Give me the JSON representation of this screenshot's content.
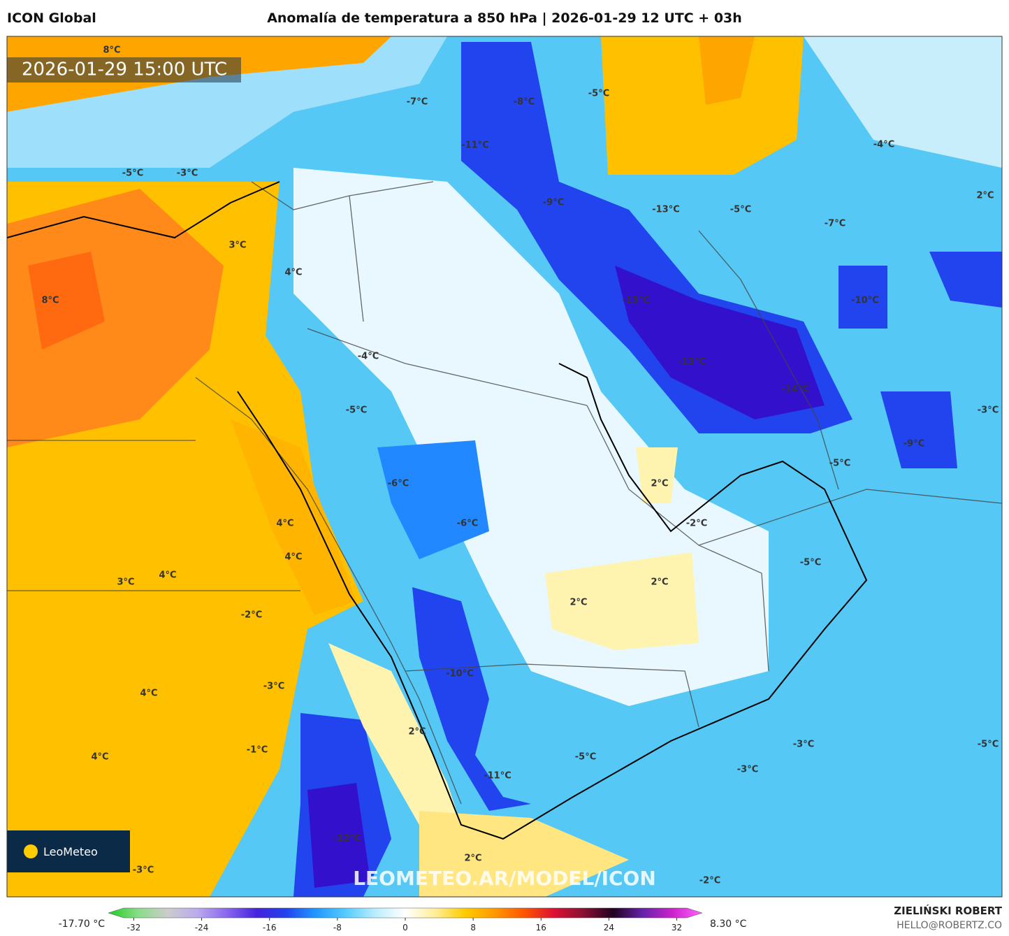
{
  "header": {
    "model": "ICON Global",
    "title": "Anomalía de temperatura a 850 hPa | 2026-01-29 12 UTC + 03h"
  },
  "map": {
    "timestamp": "2026-01-29 15:00 UTC",
    "watermark": "LEOMETEO.AR/MODEL/ICON",
    "logo": "LeoMeteo",
    "labels": [
      "8°C",
      "-7°C",
      "-8°C",
      "-5°C",
      "-11°C",
      "-4°C",
      "-5°C",
      "-3°C",
      "-9°C",
      "-13°C",
      "-5°C",
      "-7°C",
      "2°C",
      "3°C",
      "4°C",
      "8°C",
      "-13°C",
      "-10°C",
      "-4°C",
      "-13°C",
      "-14°C",
      "-5°C",
      "-3°C",
      "-9°C",
      "-5°C",
      "-6°C",
      "2°C",
      "-6°C",
      "4°C",
      "-2°C",
      "4°C",
      "-5°C",
      "3°C",
      "4°C",
      "2°C",
      "2°C",
      "-2°C",
      "-10°C",
      "-3°C",
      "4°C",
      "2°C",
      "-3°C",
      "-5°C",
      "-1°C",
      "4°C",
      "-5°C",
      "-3°C",
      "-11°C",
      "-12°C",
      "2°C",
      "-3°C",
      "-2°C"
    ]
  },
  "colorbar": {
    "min_label": "-17.70 °C",
    "max_label": "8.30 °C",
    "range": [
      -35,
      35
    ],
    "ticks": [
      -32,
      -24,
      -16,
      -8,
      0,
      8,
      16,
      24,
      32
    ],
    "colors": [
      "#22cc22",
      "#88dd88",
      "#cccccc",
      "#bbaaee",
      "#8866ee",
      "#4422dd",
      "#2244ee",
      "#2299ff",
      "#55ccff",
      "#bbeeff",
      "#ffffff",
      "#ffee99",
      "#ffcc00",
      "#ff9900",
      "#ff5500",
      "#dd1133",
      "#881133",
      "#220022",
      "#6622aa",
      "#cc22cc",
      "#ff66ff"
    ]
  },
  "footer": {
    "author": "ZIELIŃSKI ROBERT",
    "contact": "HELLO@ROBERTZ.CO"
  }
}
